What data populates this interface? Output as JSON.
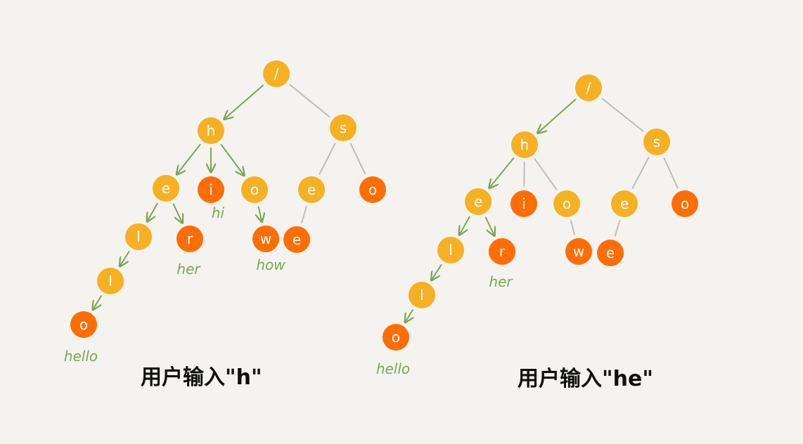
{
  "colors": {
    "background": "#f4f3ef",
    "prefix_node": "#f5b123",
    "terminal_node": "#ff6d05",
    "highlight_edge": "#7ba653",
    "plain_edge": "#bdbdbd",
    "word_label": "#7ba653"
  },
  "trees": [
    {
      "caption": "用户输入\"h\"",
      "nodes": [
        {
          "id": "root",
          "letter": "/",
          "terminal": false
        },
        {
          "id": "h",
          "letter": "h",
          "terminal": false
        },
        {
          "id": "s",
          "letter": "s",
          "terminal": false
        },
        {
          "id": "he",
          "letter": "e",
          "terminal": false
        },
        {
          "id": "hi",
          "letter": "i",
          "terminal": true,
          "word": "hi"
        },
        {
          "id": "ho",
          "letter": "o",
          "terminal": false
        },
        {
          "id": "se",
          "letter": "e",
          "terminal": false
        },
        {
          "id": "so",
          "letter": "o",
          "terminal": true
        },
        {
          "id": "hel",
          "letter": "l",
          "terminal": false
        },
        {
          "id": "her",
          "letter": "r",
          "terminal": true,
          "word": "her"
        },
        {
          "id": "how",
          "letter": "w",
          "terminal": true,
          "word": "how"
        },
        {
          "id": "see",
          "letter": "e",
          "terminal": true
        },
        {
          "id": "hell",
          "letter": "l",
          "terminal": false
        },
        {
          "id": "hello",
          "letter": "o",
          "terminal": true,
          "word": "hello"
        }
      ],
      "edges": [
        {
          "from": "root",
          "to": "h",
          "highlighted": true
        },
        {
          "from": "root",
          "to": "s",
          "highlighted": false
        },
        {
          "from": "h",
          "to": "he",
          "highlighted": true
        },
        {
          "from": "h",
          "to": "hi",
          "highlighted": true
        },
        {
          "from": "h",
          "to": "ho",
          "highlighted": true
        },
        {
          "from": "s",
          "to": "se",
          "highlighted": false
        },
        {
          "from": "s",
          "to": "so",
          "highlighted": false
        },
        {
          "from": "he",
          "to": "hel",
          "highlighted": true
        },
        {
          "from": "he",
          "to": "her",
          "highlighted": true
        },
        {
          "from": "ho",
          "to": "how",
          "highlighted": true
        },
        {
          "from": "se",
          "to": "see",
          "highlighted": false
        },
        {
          "from": "hel",
          "to": "hell",
          "highlighted": true
        },
        {
          "from": "hell",
          "to": "hello",
          "highlighted": true
        }
      ]
    },
    {
      "caption": "用户输入\"he\"",
      "nodes": [
        {
          "id": "root",
          "letter": "/",
          "terminal": false
        },
        {
          "id": "h",
          "letter": "h",
          "terminal": false
        },
        {
          "id": "s",
          "letter": "s",
          "terminal": false
        },
        {
          "id": "he",
          "letter": "e",
          "terminal": false
        },
        {
          "id": "hi",
          "letter": "i",
          "terminal": true
        },
        {
          "id": "ho",
          "letter": "o",
          "terminal": false
        },
        {
          "id": "se",
          "letter": "e",
          "terminal": false
        },
        {
          "id": "so",
          "letter": "o",
          "terminal": true
        },
        {
          "id": "hel",
          "letter": "l",
          "terminal": false
        },
        {
          "id": "her",
          "letter": "r",
          "terminal": true,
          "word": "her"
        },
        {
          "id": "how",
          "letter": "w",
          "terminal": true
        },
        {
          "id": "see",
          "letter": "e",
          "terminal": true
        },
        {
          "id": "hell",
          "letter": "l",
          "terminal": false
        },
        {
          "id": "hello",
          "letter": "o",
          "terminal": true,
          "word": "hello"
        }
      ],
      "edges": [
        {
          "from": "root",
          "to": "h",
          "highlighted": true
        },
        {
          "from": "root",
          "to": "s",
          "highlighted": false
        },
        {
          "from": "h",
          "to": "he",
          "highlighted": true
        },
        {
          "from": "h",
          "to": "hi",
          "highlighted": false
        },
        {
          "from": "h",
          "to": "ho",
          "highlighted": false
        },
        {
          "from": "s",
          "to": "se",
          "highlighted": false
        },
        {
          "from": "s",
          "to": "so",
          "highlighted": false
        },
        {
          "from": "he",
          "to": "hel",
          "highlighted": true
        },
        {
          "from": "he",
          "to": "her",
          "highlighted": true
        },
        {
          "from": "ho",
          "to": "how",
          "highlighted": false
        },
        {
          "from": "se",
          "to": "see",
          "highlighted": false
        },
        {
          "from": "hel",
          "to": "hell",
          "highlighted": true
        },
        {
          "from": "hell",
          "to": "hello",
          "highlighted": true
        }
      ]
    }
  ]
}
